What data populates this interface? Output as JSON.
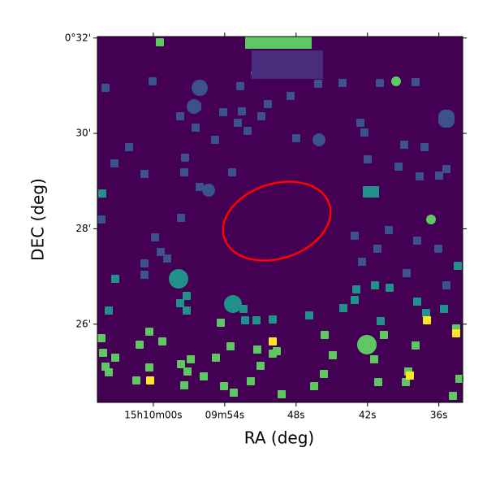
{
  "chart_data": {
    "type": "image",
    "xlabel": "RA (deg)",
    "ylabel": "DEC (deg)",
    "xlim": [
      64.7,
      34.0
    ],
    "xticks": [
      {
        "value": 60,
        "label": "15h10m00s"
      },
      {
        "value": 54,
        "label": "09m54s"
      },
      {
        "value": 48,
        "label": "48s"
      },
      {
        "value": 42,
        "label": "42s"
      },
      {
        "value": 36,
        "label": "36s"
      }
    ],
    "ylim": [
      24.36,
      32.03
    ],
    "yticks": [
      {
        "value": 32,
        "label": "0°32'"
      },
      {
        "value": 30,
        "label": "30'"
      },
      {
        "value": 28,
        "label": "28'"
      },
      {
        "value": 26,
        "label": "26'"
      }
    ]
  }
}
